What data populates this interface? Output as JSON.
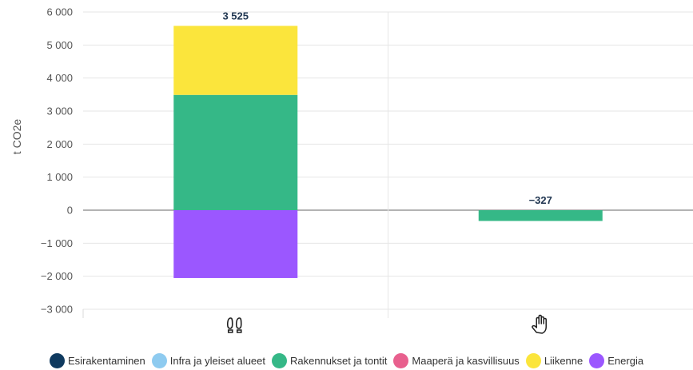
{
  "chart_data": {
    "type": "bar",
    "stacked": true,
    "categories": [
      "footprint-icon",
      "hand-icon"
    ],
    "ylabel": "t CO2e",
    "ylim": [
      -3000,
      6000
    ],
    "yticks": [
      {
        "value": 6000,
        "label": "6 000"
      },
      {
        "value": 5000,
        "label": "5 000"
      },
      {
        "value": 4000,
        "label": "4 000"
      },
      {
        "value": 3000,
        "label": "3 000"
      },
      {
        "value": 2000,
        "label": "2 000"
      },
      {
        "value": 1000,
        "label": "1 000"
      },
      {
        "value": 0,
        "label": "0"
      },
      {
        "value": -1000,
        "label": "−1 000"
      },
      {
        "value": -2000,
        "label": "−2 000"
      },
      {
        "value": -3000,
        "label": "−3 000"
      }
    ],
    "series": [
      {
        "name": "Esirakentaminen",
        "color": "#0f3a5f",
        "values": [
          0,
          0
        ]
      },
      {
        "name": "Infra ja yleiset alueet",
        "color": "#8ecbf0",
        "values": [
          0,
          0
        ]
      },
      {
        "name": "Rakennukset ja tontit",
        "color": "#35b887",
        "values": [
          3490,
          -327
        ]
      },
      {
        "name": "Maaperä ja kasvillisuus",
        "color": "#e8608e",
        "values": [
          0,
          0
        ]
      },
      {
        "name": "Liikenne",
        "color": "#fbe53c",
        "values": [
          2090,
          0
        ]
      },
      {
        "name": "Energia",
        "color": "#9b57ff",
        "values": [
          -2055,
          0
        ]
      }
    ],
    "totals": [
      {
        "value": 3525,
        "label": "3 525"
      },
      {
        "value": -327,
        "label": "−327"
      }
    ],
    "grid": true,
    "legend_position": "bottom"
  }
}
